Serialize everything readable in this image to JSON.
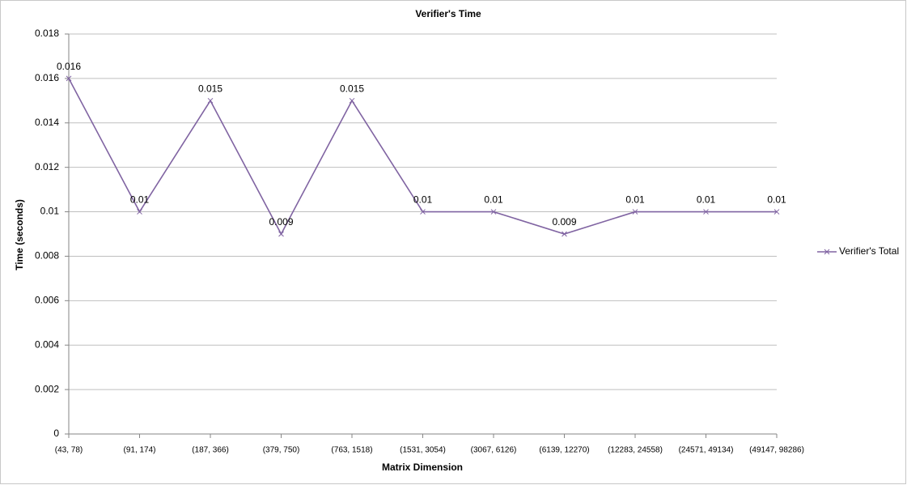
{
  "chart_data": {
    "type": "line",
    "title": "Verifier's Time",
    "x_label": "Matrix Dimension",
    "y_label": "Time (seconds)",
    "categories": [
      "(43, 78)",
      "(91, 174)",
      "(187, 366)",
      "(379, 750)",
      "(763, 1518)",
      "(1531, 3054)",
      "(3067, 6126)",
      "(6139, 12270)",
      "(12283, 24558)",
      "(24571, 49134)",
      "(49147, 98286)"
    ],
    "series": [
      {
        "name": "Verifier's Total",
        "color": "#8064a2",
        "values": [
          0.016,
          0.01,
          0.015,
          0.009,
          0.015,
          0.01,
          0.01,
          0.009,
          0.01,
          0.01,
          0.01
        ]
      }
    ],
    "ylim": [
      0,
      0.018
    ],
    "yticks": [
      0,
      0.002,
      0.004,
      0.006,
      0.008,
      0.01,
      0.012,
      0.014,
      0.016,
      0.018
    ],
    "grid": true,
    "legend": "right",
    "data_labels": true
  }
}
